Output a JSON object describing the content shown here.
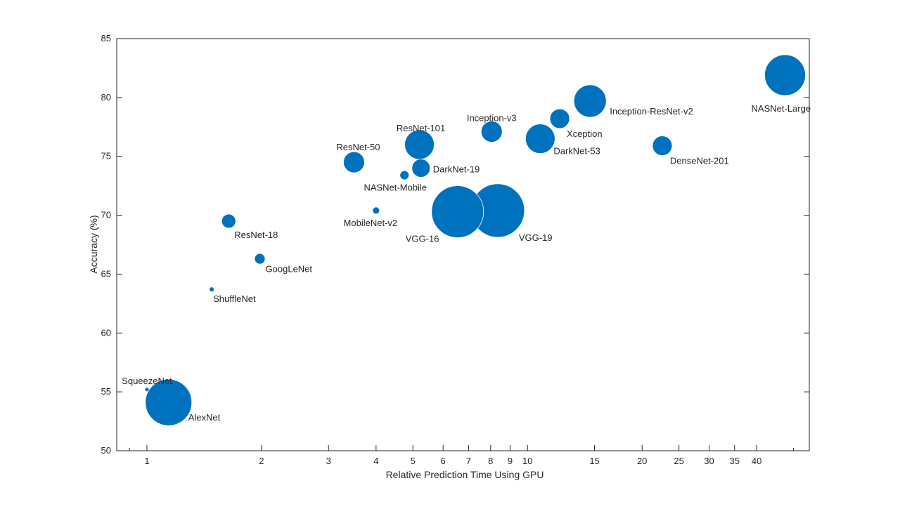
{
  "chart_data": {
    "type": "scatter",
    "subtype": "bubble",
    "title": "",
    "xlabel": "Relative Prediction Time Using GPU",
    "ylabel": "Accuracy (%)",
    "xscale": "log",
    "xlim": [
      0.833,
      55
    ],
    "ylim": [
      50,
      85
    ],
    "xticks": [
      1,
      2,
      3,
      4,
      5,
      6,
      7,
      8,
      9,
      10,
      15,
      20,
      25,
      30,
      35,
      40
    ],
    "xminor_ticks": [
      0.9,
      50
    ],
    "yticks": [
      50,
      55,
      60,
      65,
      70,
      75,
      80,
      85
    ],
    "grid": false,
    "marker_color": "#0072BD",
    "points": [
      {
        "label": "SqueezeNet",
        "x": 1.0,
        "y": 55.2,
        "bubble_size": 3
      },
      {
        "label": "AlexNet",
        "x": 1.14,
        "y": 54.1,
        "bubble_size": 33
      },
      {
        "label": "ShuffleNet",
        "x": 1.48,
        "y": 63.7,
        "bubble_size": 3.5
      },
      {
        "label": "ResNet-18",
        "x": 1.64,
        "y": 69.5,
        "bubble_size": 10
      },
      {
        "label": "GoogLeNet",
        "x": 1.98,
        "y": 66.3,
        "bubble_size": 7.5
      },
      {
        "label": "ResNet-50",
        "x": 3.5,
        "y": 74.5,
        "bubble_size": 15
      },
      {
        "label": "MobileNet-v2",
        "x": 4.0,
        "y": 70.4,
        "bubble_size": 5
      },
      {
        "label": "NASNet-Mobile",
        "x": 4.75,
        "y": 73.4,
        "bubble_size": 6.5
      },
      {
        "label": "DarkNet-19",
        "x": 5.25,
        "y": 74.0,
        "bubble_size": 13
      },
      {
        "label": "ResNet-101",
        "x": 5.2,
        "y": 76.0,
        "bubble_size": 21
      },
      {
        "label": "VGG-16",
        "x": 6.55,
        "y": 70.3,
        "bubble_size": 37
      },
      {
        "label": "VGG-19",
        "x": 8.35,
        "y": 70.4,
        "bubble_size": 38
      },
      {
        "label": "Inception-v3",
        "x": 8.05,
        "y": 77.1,
        "bubble_size": 15
      },
      {
        "label": "DarkNet-53",
        "x": 10.8,
        "y": 76.5,
        "bubble_size": 21
      },
      {
        "label": "Xception",
        "x": 12.15,
        "y": 78.2,
        "bubble_size": 14
      },
      {
        "label": "Inception-ResNet-v2",
        "x": 14.6,
        "y": 79.7,
        "bubble_size": 23
      },
      {
        "label": "DenseNet-201",
        "x": 22.6,
        "y": 75.9,
        "bubble_size": 14
      },
      {
        "label": "NASNet-Large",
        "x": 47.5,
        "y": 81.9,
        "bubble_size": 29
      }
    ]
  }
}
